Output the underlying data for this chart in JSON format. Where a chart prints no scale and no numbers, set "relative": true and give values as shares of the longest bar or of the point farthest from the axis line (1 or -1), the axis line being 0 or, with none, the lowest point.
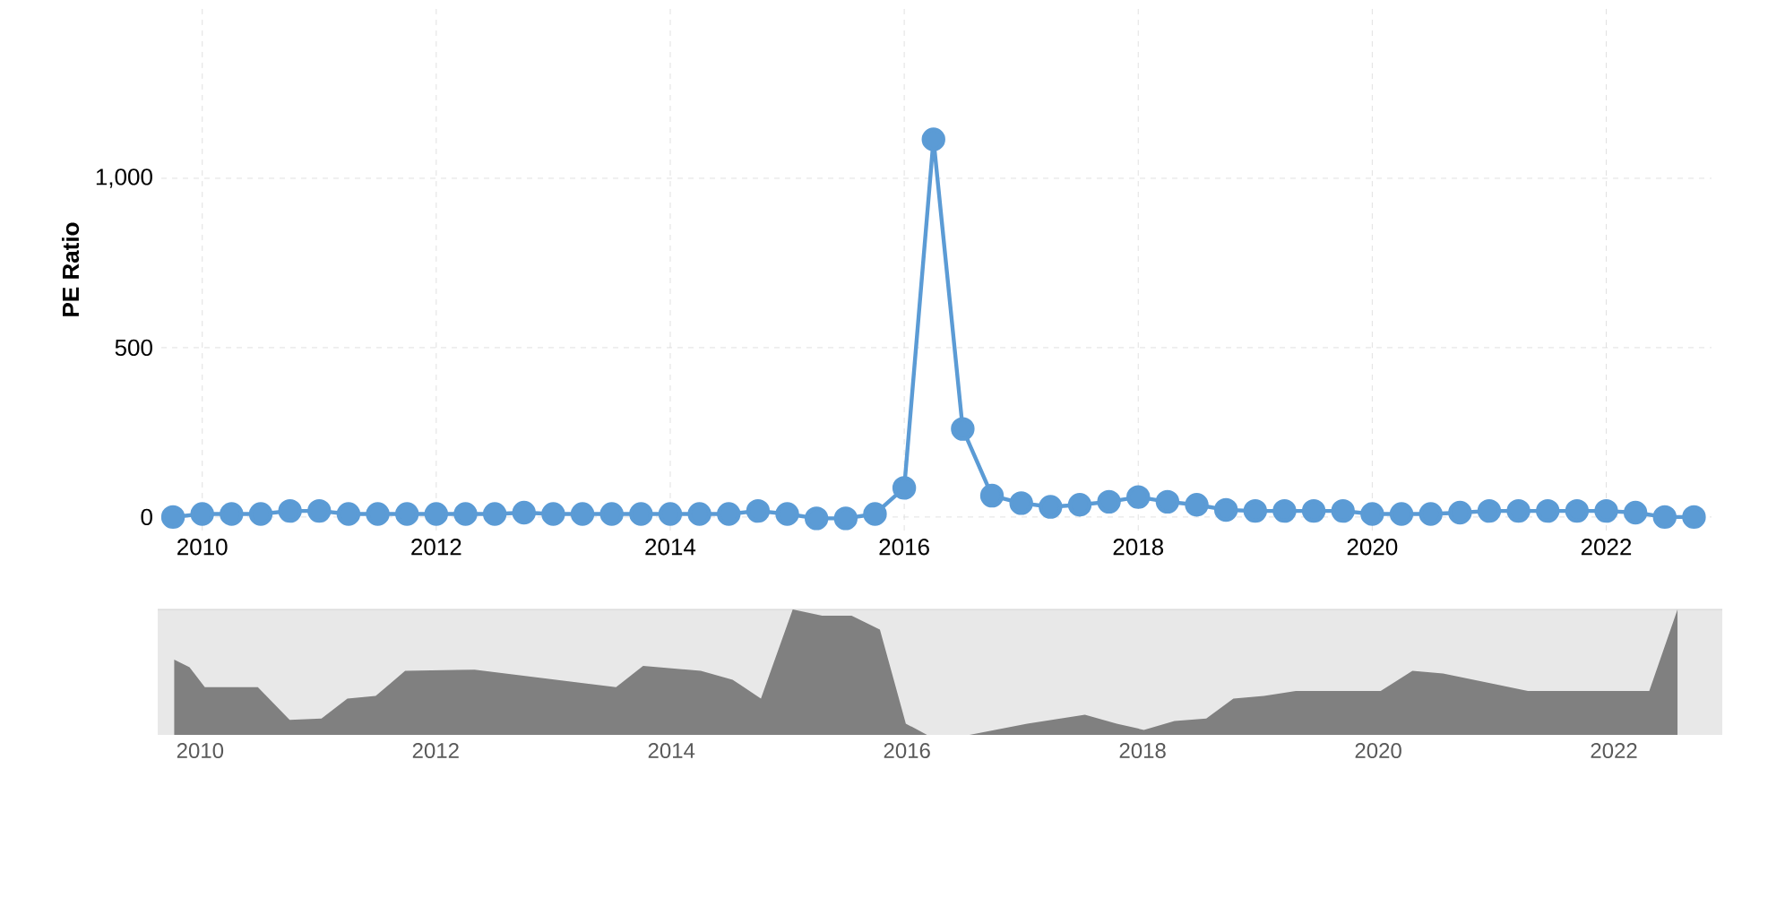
{
  "chart_data": [
    {
      "type": "line",
      "ylabel": "PE Ratio",
      "color": "#5b9bd5",
      "marker": "circle",
      "line_style": "solid",
      "grid": true,
      "x": [
        2009.75,
        2010,
        2010.25,
        2010.5,
        2010.75,
        2011,
        2011.25,
        2011.5,
        2011.75,
        2012,
        2012.25,
        2012.5,
        2012.75,
        2013,
        2013.25,
        2013.5,
        2013.75,
        2014,
        2014.25,
        2014.5,
        2014.75,
        2015,
        2015.25,
        2015.5,
        2015.75,
        2016,
        2016.25,
        2016.5,
        2016.75,
        2017,
        2017.25,
        2017.5,
        2017.75,
        2018,
        2018.25,
        2018.5,
        2018.75,
        2019,
        2019.25,
        2019.5,
        2019.75,
        2020,
        2020.25,
        2020.5,
        2020.75,
        2021,
        2021.25,
        2021.5,
        2021.75,
        2022,
        2022.25,
        2022.5,
        2022.75
      ],
      "values": [
        0,
        9,
        9,
        9,
        18,
        18,
        9,
        9,
        9,
        9,
        9,
        9,
        13,
        9,
        9,
        9,
        9,
        9,
        9,
        9,
        18,
        9,
        -4,
        -4,
        9,
        86,
        1115,
        260,
        63,
        41,
        30,
        36,
        45,
        59,
        45,
        36,
        21,
        18,
        18,
        18,
        18,
        9,
        9,
        9,
        13,
        18,
        18,
        18,
        18,
        18,
        13,
        0,
        0
      ],
      "xlim": [
        2009.65,
        2022.9
      ],
      "ylim": [
        -40,
        1500
      ],
      "xticks": [
        2010,
        2012,
        2014,
        2016,
        2018,
        2020,
        2022
      ],
      "yticks": [
        0,
        500,
        {
          "value": 1000,
          "label": "1,000"
        }
      ]
    },
    {
      "type": "area",
      "color": "#808080",
      "relative": true,
      "tick_labels": "x",
      "x": [
        2009.78,
        2009.91,
        2010.04,
        2010.49,
        2010.76,
        2011.03,
        2011.25,
        2011.49,
        2011.74,
        2012.33,
        2013.53,
        2013.76,
        2014.25,
        2014.52,
        2014.76,
        2015.03,
        2015.28,
        2015.53,
        2015.77,
        2015.99,
        2016.17,
        2016.53,
        2017.02,
        2017.51,
        2017.78,
        2018.01,
        2018.27,
        2018.54,
        2018.77,
        2019.03,
        2019.3,
        2020.02,
        2020.29,
        2020.55,
        2021.27,
        2022.3,
        2022.54
      ],
      "values": [
        0.6,
        0.54,
        0.38,
        0.38,
        0.12,
        0.13,
        0.29,
        0.31,
        0.51,
        0.52,
        0.38,
        0.55,
        0.51,
        0.44,
        0.29,
        1,
        0.95,
        0.95,
        0.84,
        0.09,
        0,
        0,
        0.09,
        0.16,
        0.09,
        0.04,
        0.11,
        0.13,
        0.29,
        0.31,
        0.35,
        0.35,
        0.51,
        0.49,
        0.35,
        0.35,
        1
      ],
      "xlim": [
        2009.64,
        2022.92
      ],
      "xticks": [
        2010,
        2012,
        2014,
        2016,
        2018,
        2020,
        2022
      ]
    }
  ]
}
